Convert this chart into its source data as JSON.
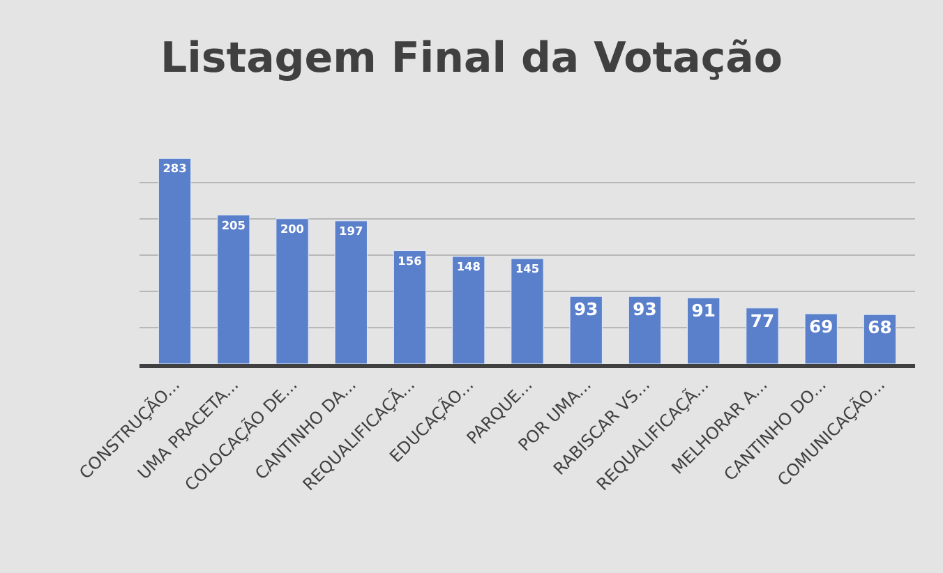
{
  "chart_data": {
    "type": "bar",
    "title": "Listagem Final da Votação",
    "categories": [
      "CONSTRUÇÃO...",
      "UMA PRACETA...",
      "COLOCAÇÃO DE...",
      "CANTINHO DA...",
      "REQUALIFICAÇÃ...",
      "EDUCAÇÃO...",
      "PARQUE...",
      "POR UMA...",
      "RABISCAR VS...",
      "REQUALIFICAÇÃ...",
      "MELHORAR A...",
      "CANTINHO DO...",
      "COMUNICAÇÃO..."
    ],
    "values": [
      283,
      205,
      200,
      197,
      156,
      148,
      145,
      93,
      93,
      91,
      77,
      69,
      68
    ],
    "color": "#5a7fcb",
    "data_labels": true,
    "grid": "y",
    "ylim": [
      0,
      290
    ],
    "yticks": [
      {
        "value": 0,
        "label": null
      },
      {
        "value": 50,
        "label": null
      },
      {
        "value": 100,
        "label": null
      },
      {
        "value": 150,
        "label": null
      },
      {
        "value": 200,
        "label": null
      },
      {
        "value": 250,
        "label": null
      }
    ],
    "tick_labels": "x"
  }
}
